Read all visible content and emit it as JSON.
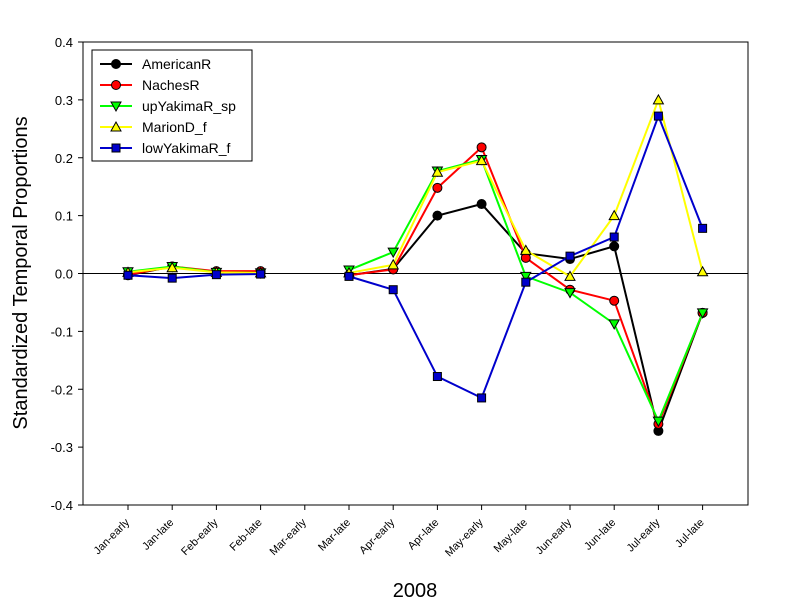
{
  "chart_data": {
    "type": "line",
    "xlabel": "2008",
    "ylabel": "Standardized Temporal Proportions",
    "ylim": [
      -0.4,
      0.4
    ],
    "yticks": [
      -0.4,
      -0.3,
      -0.2,
      -0.1,
      0.0,
      0.1,
      0.2,
      0.3,
      0.4
    ],
    "ytick_labels": [
      "-0.4",
      "-0.3",
      "-0.2",
      "-0.1",
      "0.0",
      "0.1",
      "0.2",
      "0.3",
      "0.4"
    ],
    "categories": [
      "Jan-early",
      "Jan-late",
      "Feb-early",
      "Feb-late",
      "Mar-early",
      "Mar-late",
      "Apr-early",
      "Apr-late",
      "May-early",
      "May-late",
      "Jun-early",
      "Jun-late",
      "Jul-early",
      "Jul-late"
    ],
    "zero_line": true,
    "grid": false,
    "legend_position": "top-left",
    "series": [
      {
        "name": "AmericanR",
        "color": "#000000",
        "marker": "circle",
        "values": [
          -0.003,
          0.012,
          0.002,
          0.001,
          null,
          -0.003,
          0.008,
          0.1,
          0.12,
          0.035,
          0.025,
          0.047,
          -0.272,
          -0.068
        ]
      },
      {
        "name": "NachesR",
        "color": "#ff0000",
        "marker": "circle",
        "values": [
          -0.002,
          0.012,
          0.004,
          0.004,
          null,
          -0.003,
          0.007,
          0.148,
          0.218,
          0.027,
          -0.028,
          -0.047,
          -0.26,
          -0.068
        ]
      },
      {
        "name": "upYakimaR_sp",
        "color": "#00ff00",
        "marker": "triangle-down",
        "values": [
          0.003,
          0.012,
          0.002,
          0.001,
          null,
          0.006,
          0.037,
          0.177,
          0.197,
          -0.005,
          -0.033,
          -0.087,
          -0.255,
          -0.068
        ]
      },
      {
        "name": "MarionD_f",
        "color": "#ffff00",
        "marker": "triangle-up",
        "values": [
          0.002,
          0.01,
          0.002,
          0.001,
          null,
          0.001,
          0.015,
          0.175,
          0.195,
          0.04,
          -0.005,
          0.1,
          0.3,
          0.003
        ]
      },
      {
        "name": "lowYakimaR_f",
        "color": "#0000cc",
        "marker": "square",
        "values": [
          -0.003,
          -0.008,
          -0.002,
          -0.001,
          null,
          -0.005,
          -0.028,
          -0.178,
          -0.215,
          -0.015,
          0.03,
          0.063,
          0.272,
          0.078
        ]
      }
    ]
  }
}
